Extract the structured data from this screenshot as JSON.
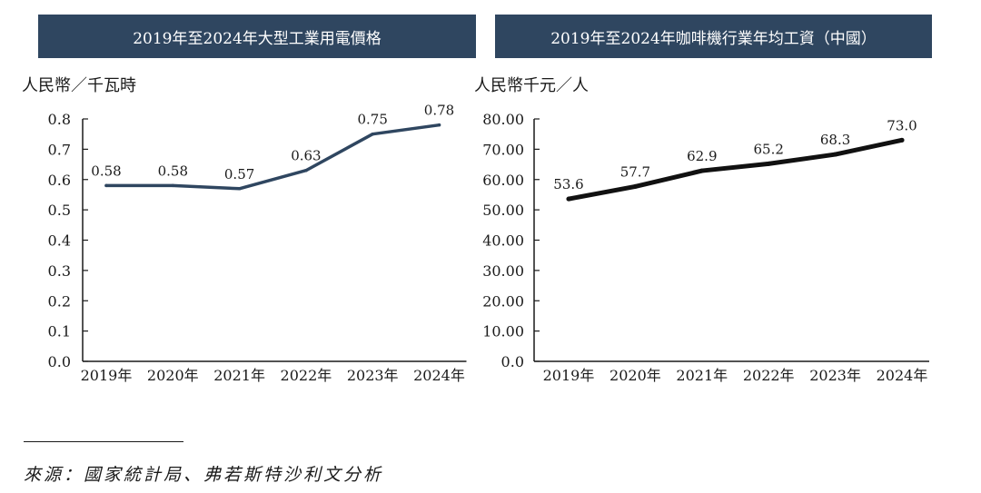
{
  "chart_data": [
    {
      "type": "line",
      "title": "2019年至2024年大型工業用電價格",
      "ylabel": "人民幣／千瓦時",
      "xlabel": "",
      "categories": [
        "2019年",
        "2020年",
        "2021年",
        "2022年",
        "2023年",
        "2024年"
      ],
      "values": [
        0.58,
        0.58,
        0.57,
        0.63,
        0.75,
        0.78
      ],
      "data_labels": [
        "0.58",
        "0.58",
        "0.57",
        "0.63",
        "0.75",
        "0.78"
      ],
      "ylim": [
        0,
        0.8
      ],
      "yticks": [
        0,
        0.1,
        0.2,
        0.3,
        0.4,
        0.5,
        0.6,
        0.7,
        0.8
      ],
      "ytick_labels": [
        "0.0",
        "0.1",
        "0.2",
        "0.3",
        "0.4",
        "0.5",
        "0.6",
        "0.7",
        "0.8"
      ],
      "line_color": "#2f4660",
      "grid": false
    },
    {
      "type": "line",
      "title": "2019年至2024年咖啡機行業年均工資（中國）",
      "ylabel": "人民幣千元／人",
      "xlabel": "",
      "categories": [
        "2019年",
        "2020年",
        "2021年",
        "2022年",
        "2023年",
        "2024年"
      ],
      "values": [
        53.6,
        57.7,
        62.9,
        65.2,
        68.3,
        73.0
      ],
      "data_labels": [
        "53.6",
        "57.7",
        "62.9",
        "65.2",
        "68.3",
        "73.0"
      ],
      "ylim": [
        0,
        80
      ],
      "yticks": [
        0,
        10,
        20,
        30,
        40,
        50,
        60,
        70,
        80
      ],
      "ytick_labels": [
        "0.0",
        "10.00",
        "20.00",
        "30.00",
        "40.00",
        "50.00",
        "60.00",
        "70.00",
        "80.00"
      ],
      "line_color": "#111111",
      "grid": false
    }
  ],
  "source": "來源：國家統計局、弗若斯特沙利文分析",
  "colors": {
    "banner": "#2f4660",
    "banner_text": "#ffffff",
    "axis": "#1a1a1a"
  }
}
